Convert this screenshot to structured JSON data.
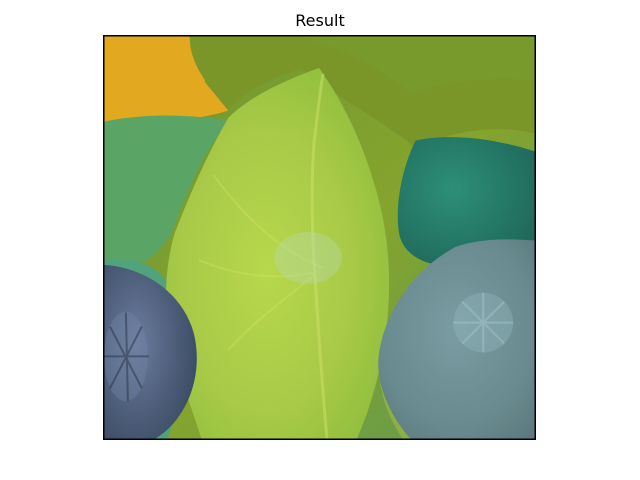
{
  "figure": {
    "title": "Result"
  },
  "image": {
    "description_colors": {
      "orange": "#e4a51f",
      "olive": "#7f9a2a",
      "lemon_yellow_green": "#b8d146",
      "pulp_yellow_green": "#a8c84d",
      "green_panel": "#5aa85f",
      "deep_teal_lime": "#2f7f6d",
      "blue_gray_lemon": "#6f8c8f",
      "kiwi_dark": "#4c5f71",
      "background_green": "#4ea17b"
    }
  }
}
